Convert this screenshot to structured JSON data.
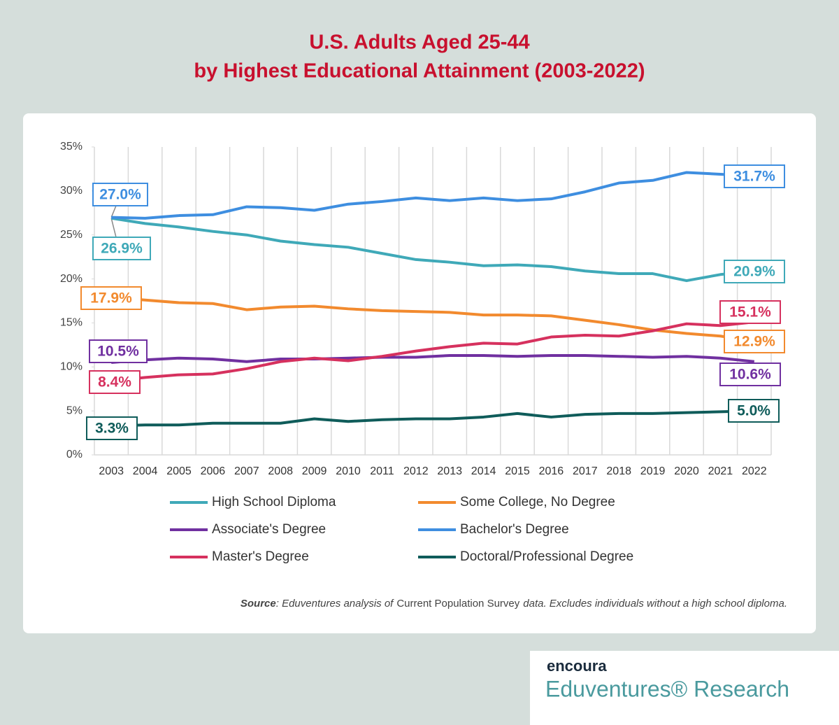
{
  "chart_data": {
    "type": "line",
    "title": [
      "U.S. Adults Aged 25-44",
      "by Highest Educational Attainment (2003-2022)"
    ],
    "categories": [
      "2003",
      "2004",
      "2005",
      "2006",
      "2007",
      "2008",
      "2009",
      "2010",
      "2011",
      "2012",
      "2013",
      "2014",
      "2015",
      "2016",
      "2017",
      "2018",
      "2019",
      "2020",
      "2021",
      "2022"
    ],
    "ylim": [
      0,
      35
    ],
    "yticks": [
      {
        "value": 0,
        "label": "0%"
      },
      {
        "value": 5,
        "label": "5%"
      },
      {
        "value": 10,
        "label": "10%"
      },
      {
        "value": 15,
        "label": "15%"
      },
      {
        "value": 20,
        "label": "20%"
      },
      {
        "value": 25,
        "label": "25%"
      },
      {
        "value": 30,
        "label": "30%"
      },
      {
        "value": 35,
        "label": "35%"
      }
    ],
    "grid": true,
    "series": [
      {
        "name": "High School Diploma",
        "color": "#3fa9b8",
        "values": [
          26.9,
          26.3,
          25.9,
          25.4,
          25.0,
          24.3,
          23.9,
          23.6,
          22.9,
          22.2,
          21.9,
          21.5,
          21.6,
          21.4,
          20.9,
          20.6,
          20.6,
          19.8,
          20.5,
          20.9
        ],
        "value_labels": [
          "26.9%",
          null,
          null,
          null,
          null,
          null,
          null,
          null,
          null,
          null,
          null,
          null,
          null,
          null,
          null,
          null,
          null,
          null,
          null,
          "20.9%"
        ]
      },
      {
        "name": "Some College, No Degree",
        "color": "#f28a2e",
        "values": [
          17.9,
          17.6,
          17.3,
          17.2,
          16.5,
          16.8,
          16.9,
          16.6,
          16.4,
          16.3,
          16.2,
          15.9,
          15.9,
          15.8,
          15.3,
          14.8,
          14.2,
          13.8,
          13.5,
          12.9
        ],
        "value_labels": [
          "17.9%",
          null,
          null,
          null,
          null,
          null,
          null,
          null,
          null,
          null,
          null,
          null,
          null,
          null,
          null,
          null,
          null,
          null,
          null,
          "12.9%"
        ]
      },
      {
        "name": "Associate's Degree",
        "color": "#7030a0",
        "values": [
          10.5,
          10.8,
          11.0,
          10.9,
          10.6,
          10.9,
          10.9,
          11.0,
          11.1,
          11.1,
          11.3,
          11.3,
          11.2,
          11.3,
          11.3,
          11.2,
          11.1,
          11.2,
          11.0,
          10.6
        ],
        "value_labels": [
          "10.5%",
          null,
          null,
          null,
          null,
          null,
          null,
          null,
          null,
          null,
          null,
          null,
          null,
          null,
          null,
          null,
          null,
          null,
          null,
          "10.6%"
        ]
      },
      {
        "name": "Bachelor's Degree",
        "color": "#3e8ee0",
        "values": [
          27.0,
          26.9,
          27.2,
          27.3,
          28.2,
          28.1,
          27.8,
          28.5,
          28.8,
          29.2,
          28.9,
          29.2,
          28.9,
          29.1,
          29.9,
          30.9,
          31.2,
          32.1,
          31.9,
          31.7
        ],
        "value_labels": [
          "27.0%",
          null,
          null,
          null,
          null,
          null,
          null,
          null,
          null,
          null,
          null,
          null,
          null,
          null,
          null,
          null,
          null,
          null,
          null,
          "31.7%"
        ]
      },
      {
        "name": "Master's Degree",
        "color": "#d6315e",
        "values": [
          8.4,
          8.8,
          9.1,
          9.2,
          9.8,
          10.6,
          11.0,
          10.7,
          11.2,
          11.8,
          12.3,
          12.7,
          12.6,
          13.4,
          13.6,
          13.5,
          14.1,
          14.9,
          14.7,
          15.1
        ],
        "value_labels": [
          "8.4%",
          null,
          null,
          null,
          null,
          null,
          null,
          null,
          null,
          null,
          null,
          null,
          null,
          null,
          null,
          null,
          null,
          null,
          null,
          "15.1%"
        ]
      },
      {
        "name": "Doctoral/Professional Degree",
        "color": "#0f5c5a",
        "values": [
          3.3,
          3.4,
          3.4,
          3.6,
          3.6,
          3.6,
          4.1,
          3.8,
          4.0,
          4.1,
          4.1,
          4.3,
          4.7,
          4.3,
          4.6,
          4.7,
          4.7,
          4.8,
          4.9,
          5.0
        ],
        "value_labels": [
          "3.3%",
          null,
          null,
          null,
          null,
          null,
          null,
          null,
          null,
          null,
          null,
          null,
          null,
          null,
          null,
          null,
          null,
          null,
          null,
          "5.0%"
        ]
      }
    ],
    "source": {
      "label": "Source",
      "parts": [
        ": Eduventures analysis of",
        "Current Population Survey",
        "data. Excludes individuals without a high school diploma."
      ]
    }
  },
  "logo": {
    "brand": "encoura",
    "name": "Eduventures® Research"
  }
}
